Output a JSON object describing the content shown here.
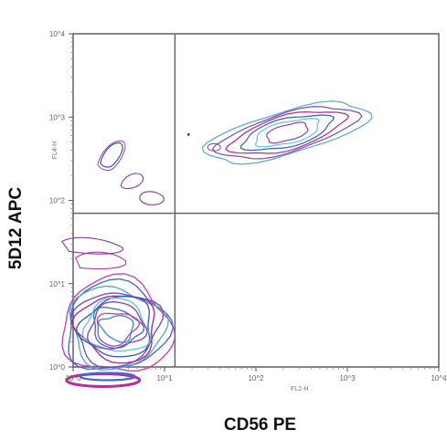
{
  "chart_data": {
    "type": "contour",
    "x_label": "CD56 PE",
    "y_label": "5D12 APC",
    "x_axis_text": "FL2-H",
    "y_axis_text": "FL4-H",
    "x_scale": "log",
    "y_scale": "log",
    "x_range": [
      1,
      10000
    ],
    "y_range": [
      1,
      10000
    ],
    "x_ticks": [
      "10^0",
      "10^1",
      "10^2",
      "10^3",
      "10^4"
    ],
    "y_ticks": [
      "10^0",
      "10^1",
      "10^2",
      "10^3",
      "10^4"
    ],
    "quadrant_x": 13,
    "quadrant_y": 70,
    "grid": false,
    "populations": [
      {
        "name": "",
        "center_x": 3,
        "center_y": 3,
        "levels": 11
      },
      {
        "name": "",
        "center_x": 220,
        "center_y": 650,
        "levels": 6
      },
      {
        "name": "",
        "center_x": 2.5,
        "center_y": 380,
        "levels": 1
      },
      {
        "name": "",
        "center_x": 4.3,
        "center_y": 180,
        "levels": 1
      }
    ]
  }
}
